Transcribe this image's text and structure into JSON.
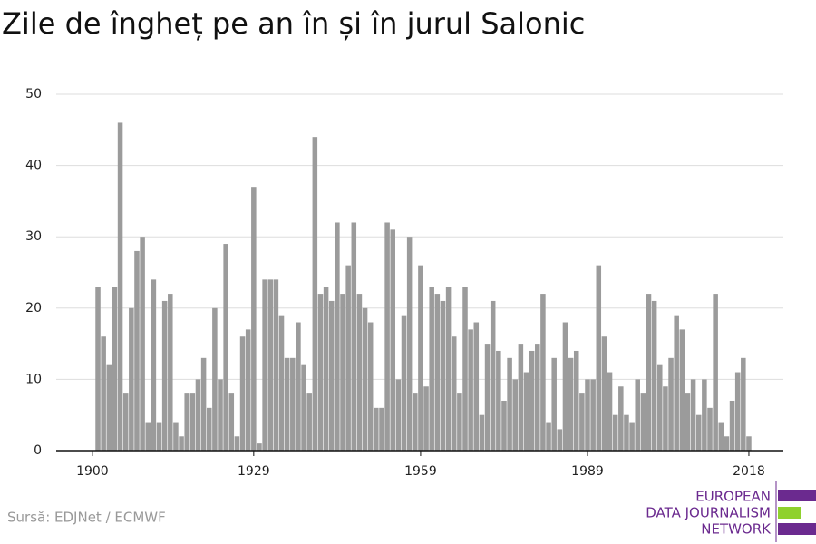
{
  "chart_data": {
    "type": "bar",
    "title": "Zile de îngheț pe an în și în jurul Salonic",
    "source": "Sursă: EDJNet / ECMWF",
    "logo": [
      "EUROPEAN",
      "DATA JOURNALISM",
      "NETWORK"
    ],
    "color": "#9b9b9b",
    "x": [
      1901,
      1902,
      1903,
      1904,
      1905,
      1906,
      1907,
      1908,
      1909,
      1910,
      1911,
      1912,
      1913,
      1914,
      1915,
      1916,
      1917,
      1918,
      1919,
      1920,
      1921,
      1922,
      1923,
      1924,
      1925,
      1926,
      1927,
      1928,
      1929,
      1930,
      1931,
      1932,
      1933,
      1934,
      1935,
      1936,
      1937,
      1938,
      1939,
      1940,
      1941,
      1942,
      1943,
      1944,
      1945,
      1946,
      1947,
      1948,
      1949,
      1950,
      1951,
      1952,
      1953,
      1954,
      1955,
      1956,
      1957,
      1958,
      1959,
      1960,
      1961,
      1962,
      1963,
      1964,
      1965,
      1966,
      1967,
      1968,
      1969,
      1970,
      1971,
      1972,
      1973,
      1974,
      1975,
      1976,
      1977,
      1978,
      1979,
      1980,
      1981,
      1982,
      1983,
      1984,
      1985,
      1986,
      1987,
      1988,
      1989,
      1990,
      1991,
      1992,
      1993,
      1994,
      1995,
      1996,
      1997,
      1998,
      1999,
      2000,
      2001,
      2002,
      2003,
      2004,
      2005,
      2006,
      2007,
      2008,
      2009,
      2010,
      2011,
      2012,
      2013,
      2014,
      2015,
      2016,
      2017,
      2018
    ],
    "values": [
      23,
      16,
      12,
      23,
      46,
      8,
      20,
      28,
      30,
      4,
      24,
      4,
      21,
      22,
      4,
      2,
      8,
      8,
      10,
      13,
      6,
      20,
      10,
      29,
      8,
      2,
      16,
      17,
      37,
      1,
      24,
      24,
      24,
      19,
      13,
      13,
      18,
      12,
      8,
      44,
      22,
      23,
      21,
      32,
      22,
      26,
      32,
      22,
      20,
      18,
      6,
      6,
      32,
      31,
      10,
      19,
      30,
      8,
      26,
      9,
      23,
      22,
      21,
      23,
      16,
      8,
      23,
      17,
      18,
      5,
      15,
      21,
      14,
      7,
      13,
      10,
      15,
      11,
      14,
      15,
      22,
      4,
      13,
      3,
      18,
      13,
      14,
      8,
      10,
      10,
      26,
      16,
      11,
      5,
      9,
      5,
      4,
      10,
      8,
      22,
      21,
      12,
      9,
      13,
      19,
      17,
      8,
      10,
      5,
      10,
      6,
      22,
      4,
      2,
      7,
      11,
      13,
      2
    ],
    "xlim": [
      1893.5,
      2024.2
    ],
    "xticks": [
      1900,
      1929,
      1959,
      1989,
      2018
    ],
    "ylim": [
      0,
      50
    ],
    "yticks": [
      0,
      10,
      20,
      30,
      40,
      50
    ],
    "grid": true
  }
}
